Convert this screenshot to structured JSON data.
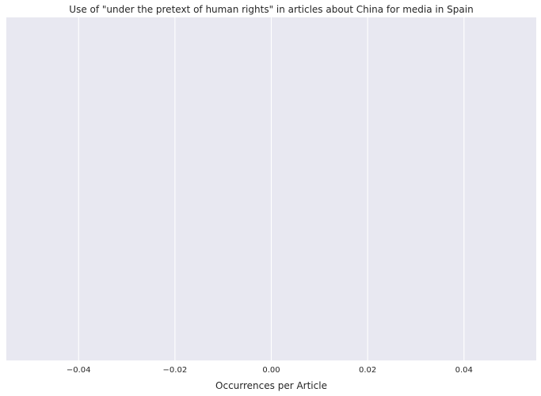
{
  "chart_data": {
    "type": "bar",
    "title": "Use of \"under the pretext of human rights\" in articles about China for media in Spain",
    "xlabel": "Occurrences per Article",
    "ylabel": "",
    "xlim": [
      -0.055,
      0.055
    ],
    "x_ticks": [
      -0.04,
      -0.02,
      0.0,
      0.02,
      0.04
    ],
    "x_tick_labels": [
      "−0.04",
      "−0.02",
      "0.00",
      "0.02",
      "0.04"
    ],
    "categories": [],
    "values": [],
    "grid": true,
    "orientation": "horizontal",
    "background_color": "#e8e8f1",
    "grid_color": "#ffffff"
  }
}
